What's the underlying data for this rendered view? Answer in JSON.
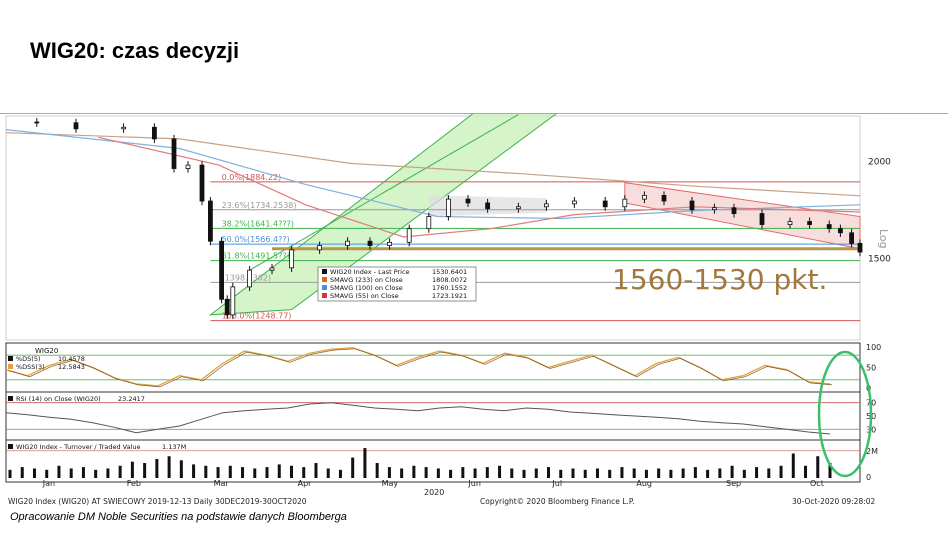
{
  "title": "WIG20: czas decyzji",
  "source_note": "Opracowanie DM Noble Securities na podstawie danych Bloomberga",
  "annotation": "1560-1530 pkt.",
  "chart_data": {
    "type": "line",
    "subtype": "candlestick",
    "instrument": "WIG20 Index",
    "x_months": [
      "Jan",
      "Feb",
      "Mar",
      "Apr",
      "May",
      "Jun",
      "Jul",
      "Aug",
      "Sep",
      "Oct"
    ],
    "x_year": "2020",
    "price_axis": {
      "scale": "log",
      "label": "Log",
      "ticks": [
        1500,
        2000
      ],
      "range": [
        1200,
        2250
      ]
    },
    "price_close": [
      [
        "2019-12-30",
        2250
      ],
      [
        "2020-01-10",
        2245
      ],
      [
        "2020-01-24",
        2205
      ],
      [
        "2020-02-10",
        2215
      ],
      [
        "2020-02-21",
        2140
      ],
      [
        "2020-02-28",
        1960
      ],
      [
        "2020-03-04",
        1980
      ],
      [
        "2020-03-09",
        1780
      ],
      [
        "2020-03-12",
        1580
      ],
      [
        "2020-03-16",
        1330
      ],
      [
        "2020-03-18",
        1270
      ],
      [
        "2020-03-20",
        1380
      ],
      [
        "2020-03-26",
        1450
      ],
      [
        "2020-04-03",
        1460
      ],
      [
        "2020-04-10",
        1540
      ],
      [
        "2020-04-20",
        1560
      ],
      [
        "2020-04-30",
        1580
      ],
      [
        "2020-05-08",
        1560
      ],
      [
        "2020-05-15",
        1575
      ],
      [
        "2020-05-22",
        1640
      ],
      [
        "2020-05-29",
        1700
      ],
      [
        "2020-06-05",
        1790
      ],
      [
        "2020-06-12",
        1770
      ],
      [
        "2020-06-19",
        1740
      ],
      [
        "2020-06-30",
        1750
      ],
      [
        "2020-07-10",
        1765
      ],
      [
        "2020-07-20",
        1780
      ],
      [
        "2020-07-31",
        1750
      ],
      [
        "2020-08-07",
        1790
      ],
      [
        "2020-08-14",
        1810
      ],
      [
        "2020-08-21",
        1780
      ],
      [
        "2020-08-31",
        1735
      ],
      [
        "2020-09-08",
        1745
      ],
      [
        "2020-09-15",
        1715
      ],
      [
        "2020-09-25",
        1660
      ],
      [
        "2020-10-05",
        1675
      ],
      [
        "2020-10-12",
        1660
      ],
      [
        "2020-10-19",
        1640
      ],
      [
        "2020-10-23",
        1620
      ],
      [
        "2020-10-27",
        1570
      ],
      [
        "2020-10-30",
        1530
      ]
    ],
    "legend": [
      {
        "name": "WIG20 Index - Last Price",
        "value": "1530.6401",
        "color": "#111111"
      },
      {
        "name": "SMAVG (233) on Close",
        "value": "1808.0072",
        "color": "#d46a1f"
      },
      {
        "name": "SMAVG (100) on Close",
        "value": "1760.1552",
        "color": "#4a90d9"
      },
      {
        "name": "SMAVG (55) on Close",
        "value": "1723.1921",
        "color": "#d93434"
      }
    ],
    "moving_averages": [
      {
        "name": "SMAVG (233)",
        "color": "#c9a184",
        "points": [
          [
            "2019-12-30",
            2180
          ],
          [
            "2020-03-01",
            2140
          ],
          [
            "2020-05-01",
            1990
          ],
          [
            "2020-07-01",
            1930
          ],
          [
            "2020-09-01",
            1860
          ],
          [
            "2020-10-30",
            1808
          ]
        ]
      },
      {
        "name": "SMAVG (100)",
        "color": "#7fb2e0",
        "points": [
          [
            "2019-12-30",
            2200
          ],
          [
            "2020-03-01",
            2080
          ],
          [
            "2020-04-15",
            1870
          ],
          [
            "2020-06-01",
            1700
          ],
          [
            "2020-07-15",
            1690
          ],
          [
            "2020-09-01",
            1730
          ],
          [
            "2020-10-30",
            1760
          ]
        ]
      },
      {
        "name": "SMAVG (55)",
        "color": "#e07b7b",
        "points": [
          [
            "2020-02-01",
            2150
          ],
          [
            "2020-03-15",
            1980
          ],
          [
            "2020-04-15",
            1760
          ],
          [
            "2020-05-20",
            1600
          ],
          [
            "2020-06-20",
            1640
          ],
          [
            "2020-07-20",
            1710
          ],
          [
            "2020-09-01",
            1750
          ],
          [
            "2020-10-30",
            1723
          ]
        ]
      }
    ],
    "fibonacci": [
      {
        "label": "0.0%(1884.22)",
        "value": 1884.22,
        "color": "#d45555"
      },
      {
        "label": "23.6%(1734.2538)",
        "value": 1734.25,
        "color": "#999999"
      },
      {
        "label": "38.2%(1641.4???)",
        "value": 1641.48,
        "color": "#3bb34a"
      },
      {
        "label": "50.0%(1566.4??)",
        "value": 1566.5,
        "color": "#4a90d9"
      },
      {
        "label": "61.8%(1491.5???)",
        "value": 1491.5,
        "color": "#3bb34a"
      },
      {
        "label": "(1398.7362)",
        "value": 1398.74,
        "color": "#999999"
      },
      {
        "label": "100.0%(1248.77)",
        "value": 1248.77,
        "color": "#d45555"
      }
    ],
    "support_level": 1545,
    "stochastics": {
      "label": "WIG20",
      "series": [
        {
          "name": "%DS(5)",
          "value": "10.4578",
          "color": "#111111"
        },
        {
          "name": "%DSS(3)",
          "value": "12.5843",
          "color": "#e6a23c"
        }
      ],
      "ticks": [
        0,
        50,
        100
      ],
      "values": [
        45,
        30,
        55,
        70,
        50,
        25,
        10,
        5,
        30,
        20,
        60,
        90,
        80,
        65,
        85,
        95,
        98,
        80,
        55,
        75,
        90,
        80,
        60,
        85,
        75,
        50,
        65,
        80,
        55,
        30,
        60,
        75,
        50,
        20,
        30,
        55,
        45,
        15,
        10
      ]
    },
    "rsi": {
      "label": "RSI (14) on Close (WIG20)",
      "value": "23.2417",
      "ticks": [
        30,
        50,
        70
      ],
      "values": [
        55,
        52,
        48,
        45,
        40,
        33,
        25,
        30,
        35,
        45,
        55,
        58,
        60,
        62,
        68,
        70,
        66,
        62,
        60,
        58,
        62,
        64,
        60,
        58,
        62,
        60,
        56,
        54,
        52,
        50,
        48,
        46,
        42,
        40,
        38,
        34,
        30,
        26,
        23
      ]
    },
    "volume": {
      "label": "WIG20 Index - Turnover / Traded Value",
      "value": "1.137M",
      "ticks": [
        "0",
        "2M"
      ],
      "values": [
        0.6,
        0.8,
        0.7,
        0.6,
        0.9,
        0.7,
        0.8,
        0.6,
        0.7,
        0.9,
        1.2,
        1.1,
        1.4,
        1.6,
        1.3,
        1.0,
        0.9,
        0.8,
        0.9,
        0.8,
        0.7,
        0.8,
        1.0,
        0.9,
        0.8,
        1.1,
        0.7,
        0.6,
        1.5,
        2.2,
        1.1,
        0.8,
        0.7,
        0.9,
        0.8,
        0.7,
        0.6,
        0.8,
        0.7,
        0.8,
        0.9,
        0.7,
        0.6,
        0.7,
        0.8,
        0.6,
        0.7,
        0.6,
        0.7,
        0.6,
        0.8,
        0.7,
        0.6,
        0.7,
        0.6,
        0.7,
        0.8,
        0.6,
        0.7,
        0.9,
        0.6,
        0.8,
        0.7,
        0.9,
        1.8,
        0.9,
        1.6,
        1.1
      ]
    },
    "footer": {
      "left": "WIG20 Index (WIG20) AT SWIECOWY 2019-12-13  Daily 30DEC2019-30OCT2020",
      "center": "Copyright© 2020 Bloomberg Finance L.P.",
      "right": "30-Oct-2020 09:28:02"
    },
    "colors": {
      "channel_fill": "#c8f0b8",
      "channel_line": "#3bb34a",
      "down_channel": "#e36b6b",
      "support": "#b8954a",
      "highlight_ellipse": "#3cbf6a",
      "annotation_text": "#a07a3a"
    }
  }
}
